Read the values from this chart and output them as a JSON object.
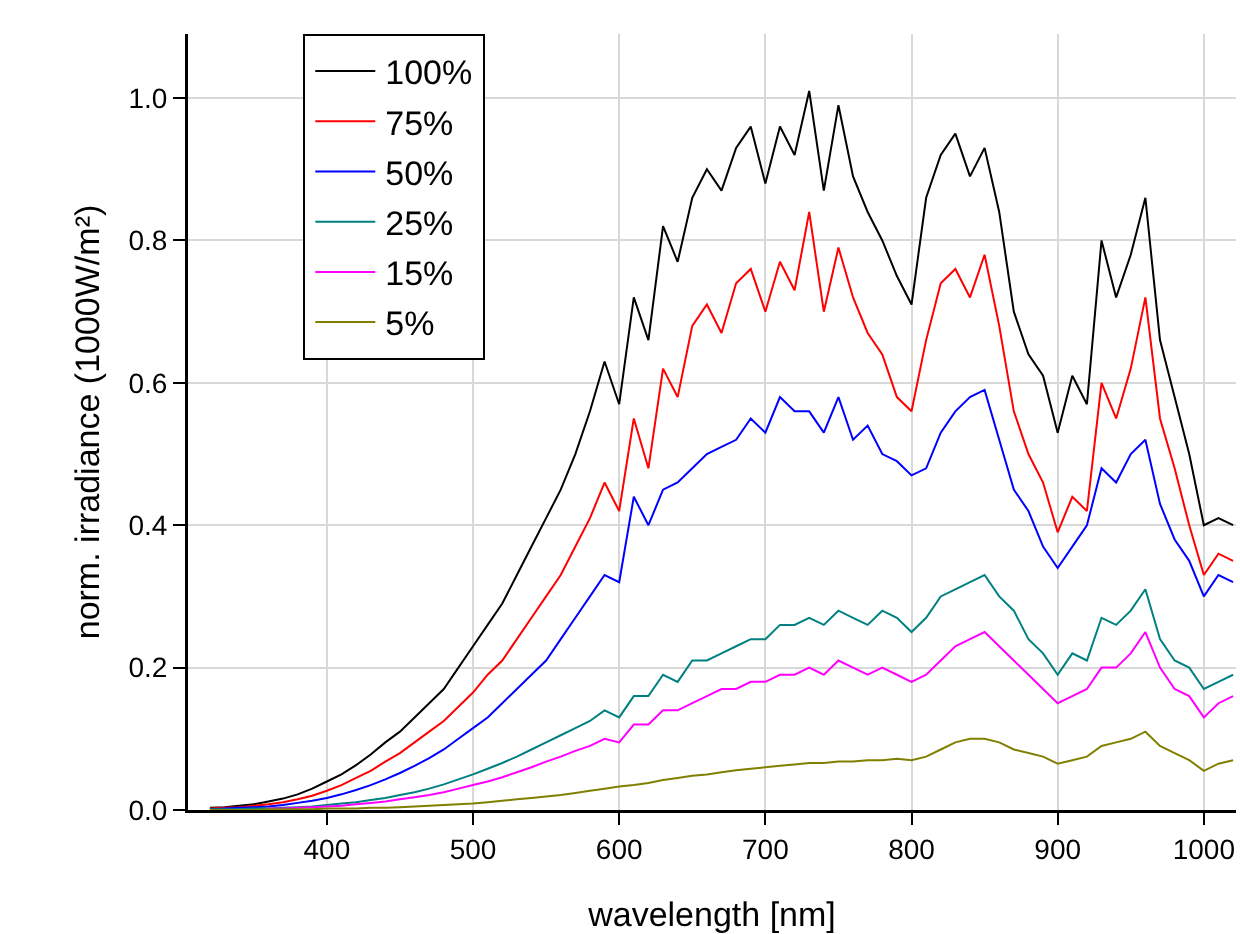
{
  "chart_data": {
    "type": "line",
    "xlabel": "wavelength [nm]",
    "ylabel": "norm. irradiance (1000W/m²)",
    "x": [
      320,
      330,
      340,
      350,
      360,
      370,
      380,
      390,
      400,
      410,
      420,
      430,
      440,
      450,
      460,
      470,
      480,
      490,
      500,
      510,
      520,
      530,
      540,
      550,
      560,
      570,
      580,
      590,
      600,
      610,
      620,
      630,
      640,
      650,
      660,
      670,
      680,
      690,
      700,
      710,
      720,
      730,
      740,
      750,
      760,
      770,
      780,
      790,
      800,
      810,
      820,
      830,
      840,
      850,
      860,
      870,
      880,
      890,
      900,
      910,
      920,
      930,
      940,
      950,
      960,
      970,
      980,
      990,
      1000,
      1010,
      1020
    ],
    "series": [
      {
        "name": "100%",
        "color": "#000000",
        "values": [
          0.003,
          0.004,
          0.006,
          0.008,
          0.012,
          0.016,
          0.022,
          0.03,
          0.04,
          0.05,
          0.063,
          0.078,
          0.095,
          0.11,
          0.13,
          0.15,
          0.17,
          0.2,
          0.23,
          0.26,
          0.29,
          0.33,
          0.37,
          0.41,
          0.45,
          0.5,
          0.56,
          0.63,
          0.57,
          0.72,
          0.66,
          0.82,
          0.77,
          0.86,
          0.9,
          0.87,
          0.93,
          0.96,
          0.88,
          0.96,
          0.92,
          1.01,
          0.87,
          0.99,
          0.89,
          0.84,
          0.8,
          0.75,
          0.71,
          0.86,
          0.92,
          0.95,
          0.89,
          0.93,
          0.84,
          0.7,
          0.64,
          0.61,
          0.53,
          0.61,
          0.57,
          0.8,
          0.72,
          0.78,
          0.86,
          0.66,
          0.58,
          0.5,
          0.4,
          0.41,
          0.4
        ]
      },
      {
        "name": "75%",
        "color": "#ff0000",
        "values": [
          0.002,
          0.003,
          0.004,
          0.006,
          0.008,
          0.011,
          0.015,
          0.02,
          0.027,
          0.035,
          0.045,
          0.055,
          0.068,
          0.08,
          0.095,
          0.11,
          0.125,
          0.145,
          0.165,
          0.19,
          0.21,
          0.24,
          0.27,
          0.3,
          0.33,
          0.37,
          0.41,
          0.46,
          0.42,
          0.55,
          0.48,
          0.62,
          0.58,
          0.68,
          0.71,
          0.67,
          0.74,
          0.76,
          0.7,
          0.77,
          0.73,
          0.84,
          0.7,
          0.79,
          0.72,
          0.67,
          0.64,
          0.58,
          0.56,
          0.66,
          0.74,
          0.76,
          0.72,
          0.78,
          0.68,
          0.56,
          0.5,
          0.46,
          0.39,
          0.44,
          0.42,
          0.6,
          0.55,
          0.62,
          0.72,
          0.55,
          0.48,
          0.4,
          0.33,
          0.36,
          0.35
        ]
      },
      {
        "name": "50%",
        "color": "#0000ff",
        "values": [
          0.001,
          0.002,
          0.003,
          0.004,
          0.005,
          0.007,
          0.01,
          0.013,
          0.017,
          0.022,
          0.028,
          0.035,
          0.043,
          0.052,
          0.062,
          0.073,
          0.085,
          0.1,
          0.115,
          0.13,
          0.15,
          0.17,
          0.19,
          0.21,
          0.24,
          0.27,
          0.3,
          0.33,
          0.32,
          0.44,
          0.4,
          0.45,
          0.46,
          0.48,
          0.5,
          0.51,
          0.52,
          0.55,
          0.53,
          0.58,
          0.56,
          0.56,
          0.53,
          0.58,
          0.52,
          0.54,
          0.5,
          0.49,
          0.47,
          0.48,
          0.53,
          0.56,
          0.58,
          0.59,
          0.52,
          0.45,
          0.42,
          0.37,
          0.34,
          0.37,
          0.4,
          0.48,
          0.46,
          0.5,
          0.52,
          0.43,
          0.38,
          0.35,
          0.3,
          0.33,
          0.32
        ]
      },
      {
        "name": "25%",
        "color": "#008080",
        "values": [
          0.001,
          0.001,
          0.001,
          0.002,
          0.002,
          0.003,
          0.004,
          0.005,
          0.007,
          0.009,
          0.011,
          0.014,
          0.017,
          0.021,
          0.025,
          0.03,
          0.036,
          0.043,
          0.05,
          0.058,
          0.066,
          0.075,
          0.085,
          0.095,
          0.105,
          0.115,
          0.125,
          0.14,
          0.13,
          0.16,
          0.16,
          0.19,
          0.18,
          0.21,
          0.21,
          0.22,
          0.23,
          0.24,
          0.24,
          0.26,
          0.26,
          0.27,
          0.26,
          0.28,
          0.27,
          0.26,
          0.28,
          0.27,
          0.25,
          0.27,
          0.3,
          0.31,
          0.32,
          0.33,
          0.3,
          0.28,
          0.24,
          0.22,
          0.19,
          0.22,
          0.21,
          0.27,
          0.26,
          0.28,
          0.31,
          0.24,
          0.21,
          0.2,
          0.17,
          0.18,
          0.19
        ]
      },
      {
        "name": "15%",
        "color": "#ff00ff",
        "values": [
          null,
          null,
          null,
          null,
          0.002,
          0.002,
          0.003,
          0.004,
          0.005,
          0.006,
          0.008,
          0.01,
          0.012,
          0.015,
          0.018,
          0.021,
          0.025,
          0.03,
          0.035,
          0.04,
          0.046,
          0.053,
          0.06,
          0.068,
          0.075,
          0.083,
          0.09,
          0.1,
          0.095,
          0.12,
          0.12,
          0.14,
          0.14,
          0.15,
          0.16,
          0.17,
          0.17,
          0.18,
          0.18,
          0.19,
          0.19,
          0.2,
          0.19,
          0.21,
          0.2,
          0.19,
          0.2,
          0.19,
          0.18,
          0.19,
          0.21,
          0.23,
          0.24,
          0.25,
          0.23,
          0.21,
          0.19,
          0.17,
          0.15,
          0.16,
          0.17,
          0.2,
          0.2,
          0.22,
          0.25,
          0.2,
          0.17,
          0.16,
          0.13,
          0.15,
          0.16
        ]
      },
      {
        "name": "5%",
        "color": "#808000",
        "values": [
          0,
          0,
          0,
          0,
          0.001,
          0.001,
          0.001,
          0.001,
          0.002,
          0.002,
          0.002,
          0.003,
          0.003,
          0.004,
          0.005,
          0.006,
          0.007,
          0.008,
          0.009,
          0.011,
          0.013,
          0.015,
          0.017,
          0.019,
          0.021,
          0.024,
          0.027,
          0.03,
          0.033,
          0.035,
          0.038,
          0.042,
          0.045,
          0.048,
          0.05,
          0.053,
          0.056,
          0.058,
          0.06,
          0.062,
          0.064,
          0.066,
          0.066,
          0.068,
          0.068,
          0.07,
          0.07,
          0.072,
          0.07,
          0.075,
          0.085,
          0.095,
          0.1,
          0.1,
          0.095,
          0.085,
          0.08,
          0.075,
          0.065,
          0.07,
          0.075,
          0.09,
          0.095,
          0.1,
          0.11,
          0.09,
          0.08,
          0.07,
          0.055,
          0.065,
          0.07
        ]
      }
    ],
    "xlim": [
      305,
      1022
    ],
    "ylim": [
      0,
      1.09
    ],
    "xticks": [
      400,
      500,
      600,
      700,
      800,
      900,
      1000
    ],
    "yticks": [
      {
        "value": 0,
        "label": "0.0"
      },
      {
        "value": 0.2,
        "label": "0.2"
      },
      {
        "value": 0.4,
        "label": "0.4"
      },
      {
        "value": 0.6,
        "label": "0.6"
      },
      {
        "value": 0.8,
        "label": "0.8"
      },
      {
        "value": 1,
        "label": "1.0"
      }
    ],
    "grid": true,
    "legend": "top left",
    "marker": "none",
    "line_style": "solid"
  }
}
